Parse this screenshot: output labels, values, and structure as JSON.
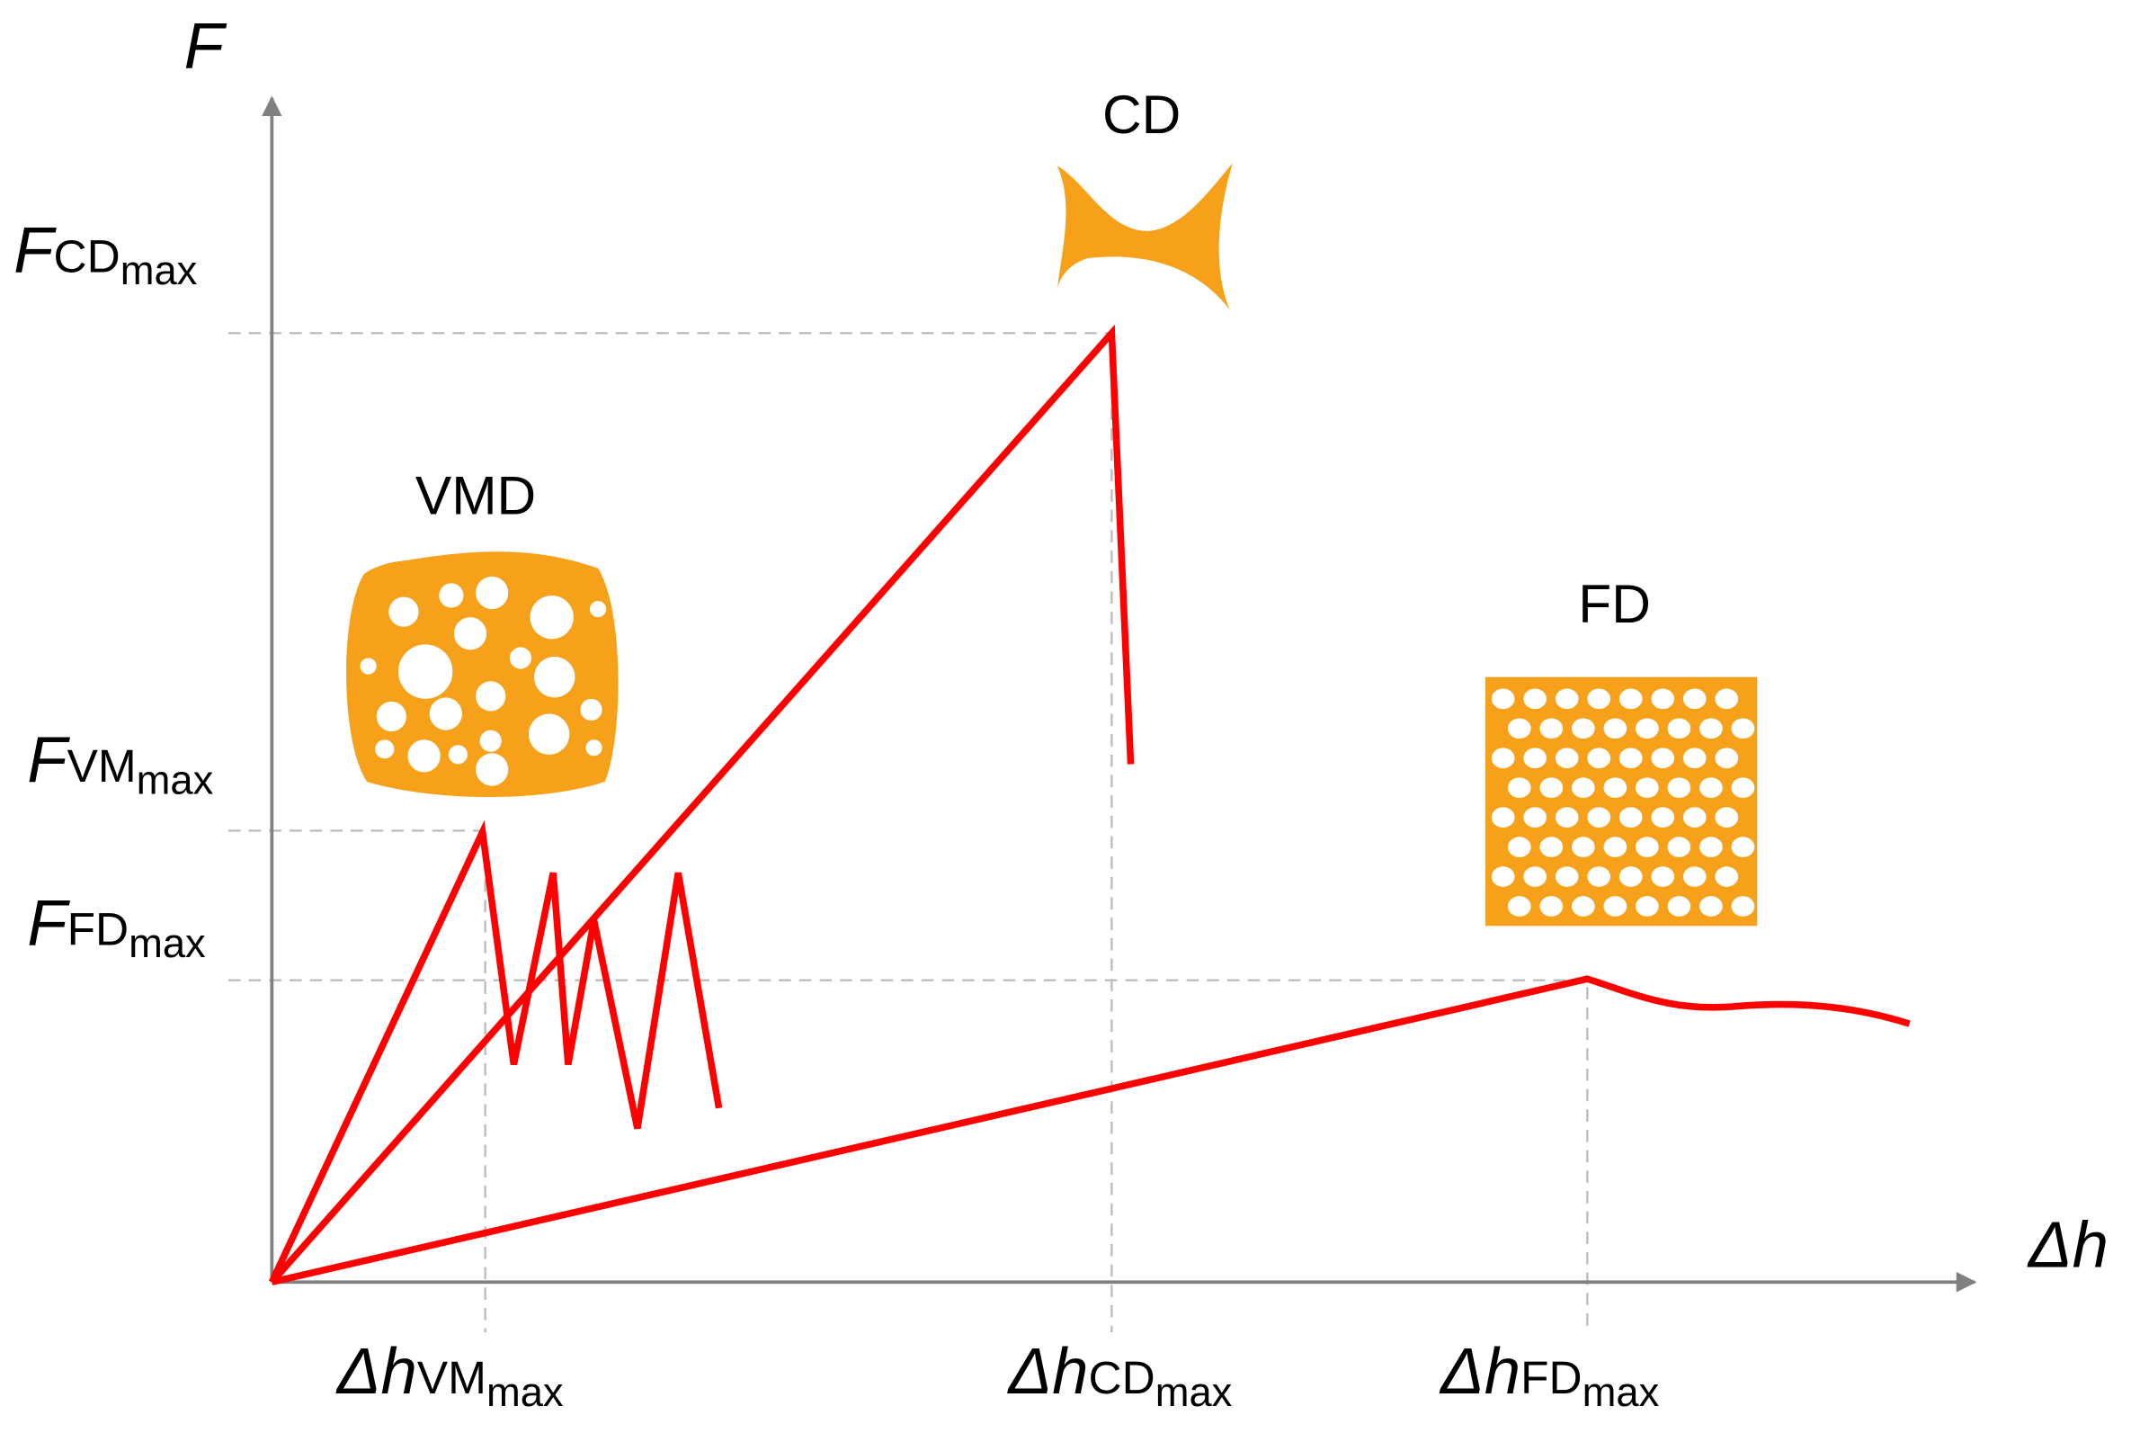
{
  "axes": {
    "y_label": "F",
    "x_label": "Δh"
  },
  "y_ticks": [
    {
      "symbol": "F",
      "name": "CD",
      "sub": "max"
    },
    {
      "symbol": "F",
      "name": "VM",
      "sub": "max"
    },
    {
      "symbol": "F",
      "name": "FD",
      "sub": "max"
    }
  ],
  "x_ticks": [
    {
      "symbol": "Δh",
      "name": "VM",
      "sub": "max"
    },
    {
      "symbol": "Δh",
      "name": "CD",
      "sub": "max"
    },
    {
      "symbol": "Δh",
      "name": "FD",
      "sub": "max"
    }
  ],
  "shapes": [
    {
      "label": "VMD"
    },
    {
      "label": "CD"
    },
    {
      "label": "FD"
    }
  ]
}
